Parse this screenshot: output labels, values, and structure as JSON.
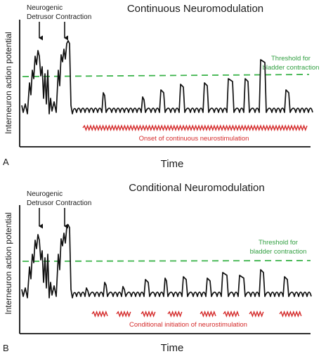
{
  "colors": {
    "signal": "#111111",
    "threshold": "#3cb44b",
    "stimulation": "#d42a2a",
    "axis": "#111111"
  },
  "panels": [
    {
      "letter": "A",
      "title": "Continuous Neuromodulation",
      "annotation_line1": "Neurogenic",
      "annotation_line2": "Detrusor Contraction",
      "threshold_line1": "Threshold for",
      "threshold_line2": "bladder contraction",
      "stim_label": "Onset of continuous neurostimulation",
      "xlabel": "Time",
      "ylabel": "Interneuron action potential",
      "stim_mode": "continuous"
    },
    {
      "letter": "B",
      "title": "Conditional Neuromodulation",
      "annotation_line1": "Neurogenic",
      "annotation_line2": "Detrusor Contraction",
      "threshold_line1": "Threshold for",
      "threshold_line2": "bladder contraction",
      "stim_label": "Conditional initiation of neurostimulation",
      "xlabel": "Time",
      "ylabel": "Interneuron action potential",
      "stim_mode": "conditional"
    }
  ]
}
